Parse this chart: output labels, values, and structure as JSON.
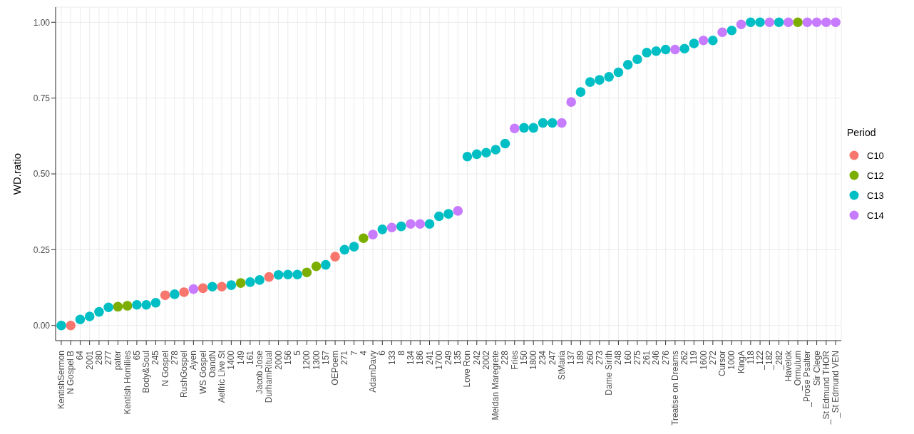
{
  "chart_data": {
    "type": "scatter",
    "ylabel": "WD.ratio",
    "legend_title": "Period",
    "legend": "right",
    "grid": true,
    "marker": "circle",
    "categories": [
      "KentishSermon",
      "N Gospel B",
      "64",
      "2001",
      "280",
      "277",
      "pater",
      "Kentish Homilies",
      "65",
      "Body&Soul",
      "245",
      "N Gospel",
      "278",
      "RushGospel",
      "Ayen",
      "WS Gospel",
      "OandN",
      "Aelfric Live St",
      "1400",
      "149",
      "161",
      "Jacob Jose",
      "DurhamRitual",
      "2000",
      "156",
      "5",
      "1200",
      "1300",
      "157",
      "OEPoem",
      "271",
      "7",
      "4",
      "AdamDavy",
      "6",
      "133",
      "8",
      "134",
      "186",
      "241",
      "1700",
      "249",
      "135",
      "Love Ron",
      "242",
      "2002",
      "Meidan Maregrete",
      "228",
      "Fries",
      "150",
      "1800",
      "234",
      "247",
      "StMaria",
      "137",
      "189",
      "260",
      "273",
      "Dame Sirith",
      "248",
      "160",
      "275",
      "261",
      "246",
      "276",
      "Treatise on Dreams",
      "262",
      "119",
      "1600",
      "272",
      "Cursor",
      "1000",
      "KingA",
      "118",
      "_122",
      "_182",
      "_282",
      "Havelok",
      "_Ormulum",
      "_Prose Psalter",
      "Sir Clege",
      "_St Edmund THOR",
      "_St Edmund VEN"
    ],
    "ylim": [
      -0.05,
      1.05
    ],
    "yticks": [
      {
        "value": 0,
        "label": "0.00"
      },
      {
        "value": 0.25,
        "label": "0.25"
      },
      {
        "value": 0.5,
        "label": "0.50"
      },
      {
        "value": 0.75,
        "label": "0.75"
      },
      {
        "value": 1,
        "label": "1.00"
      }
    ],
    "series": [
      {
        "name": "C10",
        "color": "#f8766d",
        "values": [
          null,
          0.0,
          null,
          null,
          null,
          null,
          null,
          null,
          null,
          null,
          null,
          0.1,
          null,
          0.11,
          null,
          0.123,
          null,
          0.128,
          null,
          null,
          null,
          null,
          0.16,
          null,
          null,
          null,
          null,
          null,
          null,
          0.227,
          null,
          null,
          null,
          null,
          null,
          null,
          null,
          null,
          null,
          null,
          null,
          null,
          null,
          null,
          null,
          null,
          null,
          null,
          null,
          null,
          null,
          null,
          null,
          null,
          null,
          null,
          null,
          null,
          null,
          null,
          null,
          null,
          null,
          null,
          null,
          null,
          null,
          null,
          null,
          null,
          null,
          null,
          null,
          null,
          null,
          null,
          null,
          null,
          null,
          null,
          null,
          null,
          null
        ]
      },
      {
        "name": "C12",
        "color": "#7cae00",
        "values": [
          null,
          null,
          null,
          null,
          null,
          null,
          0.062,
          0.065,
          null,
          null,
          null,
          null,
          null,
          null,
          null,
          null,
          null,
          null,
          null,
          0.14,
          null,
          null,
          null,
          null,
          null,
          null,
          0.175,
          0.195,
          null,
          null,
          null,
          null,
          0.288,
          null,
          null,
          null,
          null,
          null,
          null,
          null,
          null,
          null,
          null,
          null,
          null,
          null,
          null,
          null,
          null,
          null,
          null,
          null,
          null,
          null,
          null,
          null,
          null,
          null,
          null,
          null,
          null,
          null,
          null,
          null,
          null,
          null,
          null,
          null,
          null,
          null,
          null,
          null,
          null,
          null,
          null,
          null,
          null,
          null,
          1.0,
          null,
          null,
          null,
          null
        ]
      },
      {
        "name": "C13",
        "color": "#00bfc4",
        "values": [
          0.0,
          null,
          0.02,
          0.03,
          0.045,
          0.06,
          null,
          null,
          0.068,
          0.068,
          0.075,
          null,
          0.103,
          null,
          null,
          null,
          0.128,
          null,
          0.133,
          null,
          0.143,
          0.15,
          null,
          0.167,
          0.168,
          0.168,
          null,
          null,
          0.2,
          null,
          0.25,
          0.26,
          null,
          null,
          0.317,
          null,
          0.327,
          null,
          null,
          0.335,
          0.36,
          0.368,
          null,
          0.557,
          0.565,
          0.57,
          0.58,
          0.6,
          null,
          0.652,
          0.652,
          0.668,
          0.668,
          null,
          null,
          0.77,
          0.803,
          0.81,
          0.82,
          0.835,
          0.86,
          0.878,
          0.9,
          0.905,
          0.91,
          null,
          0.913,
          0.93,
          null,
          0.94,
          null,
          0.973,
          null,
          1.0,
          1.0,
          null,
          1.0,
          null,
          null,
          null,
          null,
          null,
          null
        ]
      },
      {
        "name": "C14",
        "color": "#c77cff",
        "values": [
          null,
          null,
          null,
          null,
          null,
          null,
          null,
          null,
          null,
          null,
          null,
          null,
          null,
          null,
          0.12,
          null,
          null,
          null,
          null,
          null,
          null,
          null,
          null,
          null,
          null,
          null,
          null,
          null,
          null,
          null,
          null,
          null,
          null,
          0.3,
          null,
          0.323,
          null,
          0.335,
          0.335,
          null,
          null,
          null,
          0.378,
          null,
          null,
          null,
          null,
          null,
          0.65,
          null,
          null,
          null,
          null,
          0.668,
          0.737,
          null,
          null,
          null,
          null,
          null,
          null,
          null,
          null,
          null,
          null,
          0.91,
          null,
          null,
          0.94,
          null,
          0.967,
          null,
          0.993,
          null,
          null,
          1.0,
          null,
          1.0,
          null,
          1.0,
          1.0,
          1.0,
          1.0
        ]
      }
    ]
  }
}
